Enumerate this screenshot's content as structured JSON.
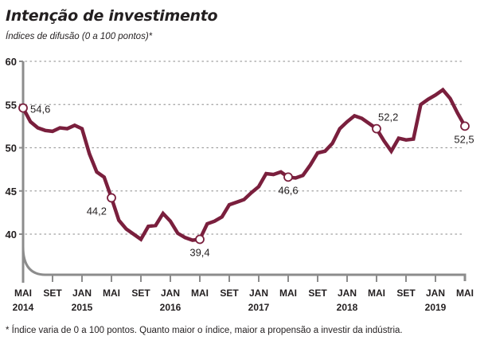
{
  "header": {
    "title": "Intenção de investimento",
    "subtitle": "Índices de difusão (0 a 100 pontos)*"
  },
  "footnote": "* Índice varia de 0 a 100 pontos. Quanto maior o índice, maior a propensão a investir da indústria.",
  "colors": {
    "line": "#7a1f3d",
    "axis": "#8c8c8c",
    "grid": "#a0a0a0",
    "marker_fill": "#ffffff"
  },
  "chart_data": {
    "type": "line",
    "title": "Intenção de investimento",
    "subtitle": "Índices de difusão (0 a 100 pontos)*",
    "xlabel": "",
    "ylabel": "",
    "ylim": [
      35,
      60
    ],
    "yticks": [
      40,
      45,
      50,
      55,
      60
    ],
    "grid": true,
    "legend": "none",
    "start": "2014-05",
    "end": "2019-05",
    "frequency": "monthly",
    "xticks": [
      {
        "month": 0,
        "label": "MAI",
        "year": "2014"
      },
      {
        "month": 4,
        "label": "SET",
        "year": ""
      },
      {
        "month": 8,
        "label": "JAN",
        "year": "2015"
      },
      {
        "month": 12,
        "label": "MAI",
        "year": ""
      },
      {
        "month": 16,
        "label": "SET",
        "year": ""
      },
      {
        "month": 20,
        "label": "JAN",
        "year": "2016"
      },
      {
        "month": 24,
        "label": "MAI",
        "year": ""
      },
      {
        "month": 28,
        "label": "SET",
        "year": ""
      },
      {
        "month": 32,
        "label": "JAN",
        "year": "2017"
      },
      {
        "month": 36,
        "label": "MAI",
        "year": ""
      },
      {
        "month": 40,
        "label": "SET",
        "year": ""
      },
      {
        "month": 44,
        "label": "JAN",
        "year": "2018"
      },
      {
        "month": 48,
        "label": "MAI",
        "year": ""
      },
      {
        "month": 52,
        "label": "SET",
        "year": ""
      },
      {
        "month": 56,
        "label": "JAN",
        "year": "2019"
      },
      {
        "month": 60,
        "label": "MAI",
        "year": ""
      }
    ],
    "series": [
      {
        "name": "Intenção de investimento",
        "values": [
          54.6,
          53.0,
          52.3,
          52.0,
          51.9,
          52.3,
          52.2,
          52.6,
          52.2,
          49.3,
          47.2,
          46.6,
          44.2,
          41.6,
          40.6,
          40.0,
          39.4,
          40.9,
          41.0,
          42.4,
          41.5,
          40.1,
          39.6,
          39.3,
          39.4,
          41.2,
          41.5,
          42.0,
          43.4,
          43.7,
          44.0,
          44.8,
          45.5,
          47.0,
          46.9,
          47.2,
          46.6,
          46.5,
          46.8,
          48.0,
          49.4,
          49.6,
          50.5,
          52.2,
          53.0,
          53.7,
          53.4,
          52.8,
          52.2,
          50.8,
          49.6,
          51.1,
          50.9,
          51.0,
          55.0,
          55.6,
          56.1,
          56.7,
          55.7,
          54.0,
          52.5
        ]
      }
    ],
    "annotations": [
      {
        "month": 0,
        "value": 54.6,
        "label": "54,6",
        "position": "right"
      },
      {
        "month": 12,
        "value": 44.2,
        "label": "44,2",
        "position": "below-left"
      },
      {
        "month": 24,
        "value": 39.4,
        "label": "39,4",
        "position": "below"
      },
      {
        "month": 36,
        "value": 46.6,
        "label": "46,6",
        "position": "below"
      },
      {
        "month": 48,
        "value": 52.2,
        "label": "52,2",
        "position": "above-right"
      },
      {
        "month": 60,
        "value": 52.5,
        "label": "52,5",
        "position": "below"
      }
    ]
  }
}
